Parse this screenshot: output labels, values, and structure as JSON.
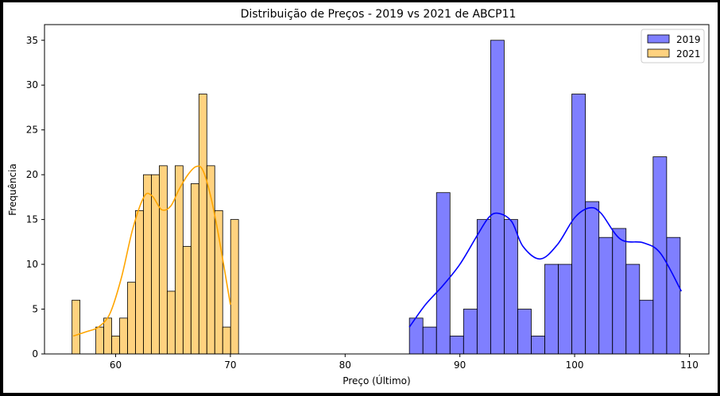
{
  "chart_data": {
    "type": "bar",
    "title": "Distribuição de Preços - 2019 vs 2021 de ABCP11",
    "xlabel": "Preço (Último)",
    "ylabel": "Frequência",
    "xlim": [
      63.8,
      111.7
    ],
    "ylim": [
      0,
      36.75
    ],
    "xticks": [
      60,
      70,
      80,
      90,
      100,
      110
    ],
    "yticks": [
      0,
      5,
      10,
      15,
      20,
      25,
      30,
      35
    ],
    "grid": false,
    "legend_position": "top-right",
    "series": [
      {
        "name": "2019",
        "color": "#0000ff",
        "bin_start": 85.6,
        "bin_width": 1.18,
        "counts": [
          4,
          3,
          18,
          2,
          5,
          15,
          35,
          15,
          5,
          2,
          10,
          10,
          29,
          17,
          13,
          14,
          10,
          6,
          22,
          13
        ],
        "kde_x": [
          85.6,
          87,
          88.5,
          90,
          91.5,
          92.5,
          93.3,
          94.5,
          95.5,
          97,
          98.5,
          100,
          101.3,
          102.3,
          104,
          106,
          107.5,
          109.3
        ],
        "kde_y": [
          3,
          5.5,
          7.6,
          10,
          13.2,
          15.2,
          15.7,
          14.8,
          12,
          10.6,
          12.2,
          15.2,
          16.3,
          15.7,
          12.8,
          12.4,
          11.2,
          7
        ]
      },
      {
        "name": "2021",
        "color": "#ffa500",
        "bin_start": 56.2,
        "bin_width": 0.691,
        "counts": [
          6,
          0,
          0,
          3,
          4,
          2,
          4,
          8,
          16,
          20,
          20,
          21,
          7,
          21,
          12,
          19,
          29,
          21,
          16,
          3,
          15
        ],
        "kde_x": [
          56.3,
          57.5,
          58.5,
          59.5,
          60.5,
          61.5,
          62.5,
          63.2,
          64,
          64.8,
          65.5,
          66.3,
          67,
          67.6,
          68.3,
          69,
          70
        ],
        "kde_y": [
          2,
          2.5,
          3,
          4.5,
          8.5,
          14,
          17.6,
          17.6,
          16.1,
          16.5,
          18.3,
          20,
          20.9,
          20.5,
          17.5,
          13,
          5.5
        ]
      }
    ]
  }
}
